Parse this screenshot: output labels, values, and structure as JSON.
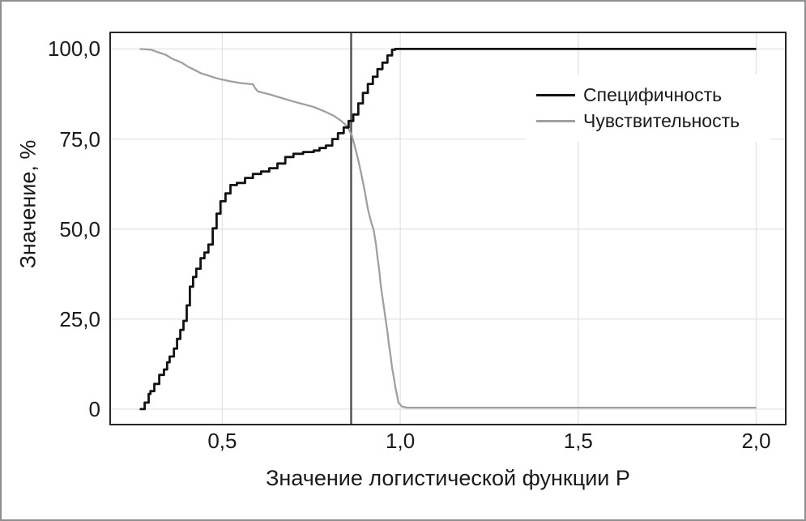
{
  "colors": {
    "grid": "#e4e4e4",
    "panel_border": "#262626",
    "text": "#1a1a1a",
    "figure_border": "#8f8f8f",
    "background": "#ffffff"
  },
  "chart_data": {
    "type": "line",
    "title": "",
    "xlabel": "Значение логистической функции P",
    "ylabel": "Значение, %",
    "x_range": [
      0.185,
      2.083
    ],
    "y_range": [
      -4.3,
      104.6
    ],
    "grid": true,
    "legend_position": "top-right-inside",
    "x_ticks": [
      {
        "v": 0.5,
        "label": "0,5"
      },
      {
        "v": 1.0,
        "label": "1,0"
      },
      {
        "v": 1.5,
        "label": "1,5"
      },
      {
        "v": 2.0,
        "label": "2,0"
      }
    ],
    "y_ticks": [
      {
        "v": 0,
        "label": "0"
      },
      {
        "v": 25,
        "label": "25,0"
      },
      {
        "v": 50,
        "label": "50,0"
      },
      {
        "v": 75,
        "label": "75,0"
      },
      {
        "v": 100,
        "label": "100,0"
      }
    ],
    "threshold_line": {
      "x": 0.862,
      "color": "#4f4f4f"
    },
    "series": [
      {
        "name": "Специфичность",
        "color": "#121212",
        "width": 2.8,
        "interpolation": "step",
        "points": [
          [
            0.268,
            0
          ],
          [
            0.282,
            1.8
          ],
          [
            0.293,
            4.2
          ],
          [
            0.298,
            5.0
          ],
          [
            0.309,
            7.0
          ],
          [
            0.323,
            9.5
          ],
          [
            0.336,
            11.0
          ],
          [
            0.345,
            13.0
          ],
          [
            0.352,
            14.6
          ],
          [
            0.364,
            16.8
          ],
          [
            0.373,
            19.5
          ],
          [
            0.382,
            22.0
          ],
          [
            0.391,
            24.5
          ],
          [
            0.4,
            28.8
          ],
          [
            0.409,
            34.0
          ],
          [
            0.418,
            36.7
          ],
          [
            0.427,
            39.0
          ],
          [
            0.439,
            41.9
          ],
          [
            0.45,
            43.5
          ],
          [
            0.461,
            45.7
          ],
          [
            0.473,
            50.2
          ],
          [
            0.484,
            54.3
          ],
          [
            0.495,
            57.7
          ],
          [
            0.509,
            59.9
          ],
          [
            0.523,
            62.2
          ],
          [
            0.541,
            62.8
          ],
          [
            0.564,
            64.2
          ],
          [
            0.586,
            65.3
          ],
          [
            0.609,
            66.0
          ],
          [
            0.632,
            66.9
          ],
          [
            0.655,
            68.2
          ],
          [
            0.677,
            70.0
          ],
          [
            0.7,
            70.9
          ],
          [
            0.727,
            71.4
          ],
          [
            0.757,
            71.8
          ],
          [
            0.773,
            72.5
          ],
          [
            0.791,
            73.2
          ],
          [
            0.809,
            75.0
          ],
          [
            0.825,
            76.6
          ],
          [
            0.841,
            78.2
          ],
          [
            0.855,
            80.0
          ],
          [
            0.868,
            81.8
          ],
          [
            0.882,
            84.9
          ],
          [
            0.895,
            87.8
          ],
          [
            0.909,
            90.3
          ],
          [
            0.923,
            92.3
          ],
          [
            0.936,
            94.4
          ],
          [
            0.95,
            96.2
          ],
          [
            0.964,
            98.2
          ],
          [
            0.977,
            99.8
          ],
          [
            0.986,
            100
          ],
          [
            2.0,
            100
          ]
        ]
      },
      {
        "name": "Чувствительность",
        "color": "#a0a0a0",
        "width": 2.3,
        "interpolation": "linear",
        "points": [
          [
            0.268,
            100
          ],
          [
            0.3,
            99.8
          ],
          [
            0.314,
            99.3
          ],
          [
            0.341,
            98.4
          ],
          [
            0.359,
            97.3
          ],
          [
            0.386,
            96.2
          ],
          [
            0.405,
            95.0
          ],
          [
            0.42,
            94.3
          ],
          [
            0.439,
            93.3
          ],
          [
            0.461,
            92.6
          ],
          [
            0.477,
            92.1
          ],
          [
            0.495,
            91.6
          ],
          [
            0.523,
            91.0
          ],
          [
            0.555,
            90.5
          ],
          [
            0.586,
            90.2
          ],
          [
            0.593,
            89.0
          ],
          [
            0.6,
            88.2
          ],
          [
            0.632,
            87.4
          ],
          [
            0.666,
            86.4
          ],
          [
            0.7,
            85.4
          ],
          [
            0.723,
            84.8
          ],
          [
            0.757,
            83.9
          ],
          [
            0.791,
            82.5
          ],
          [
            0.814,
            81.4
          ],
          [
            0.836,
            79.9
          ],
          [
            0.85,
            78.6
          ],
          [
            0.864,
            76.0
          ],
          [
            0.873,
            72.7
          ],
          [
            0.882,
            69.1
          ],
          [
            0.891,
            65.1
          ],
          [
            0.9,
            60.6
          ],
          [
            0.909,
            55.6
          ],
          [
            0.918,
            52.0
          ],
          [
            0.925,
            49.8
          ],
          [
            0.932,
            45.7
          ],
          [
            0.936,
            42.1
          ],
          [
            0.941,
            38.5
          ],
          [
            0.945,
            34.5
          ],
          [
            0.95,
            31.1
          ],
          [
            0.955,
            27.7
          ],
          [
            0.959,
            24.8
          ],
          [
            0.964,
            21.4
          ],
          [
            0.968,
            18.0
          ],
          [
            0.973,
            14.6
          ],
          [
            0.977,
            11.5
          ],
          [
            0.982,
            8.8
          ],
          [
            0.986,
            6.1
          ],
          [
            0.991,
            3.8
          ],
          [
            0.995,
            1.8
          ],
          [
            1.005,
            0.7
          ],
          [
            1.02,
            0.4
          ],
          [
            2.0,
            0.4
          ]
        ]
      }
    ]
  }
}
